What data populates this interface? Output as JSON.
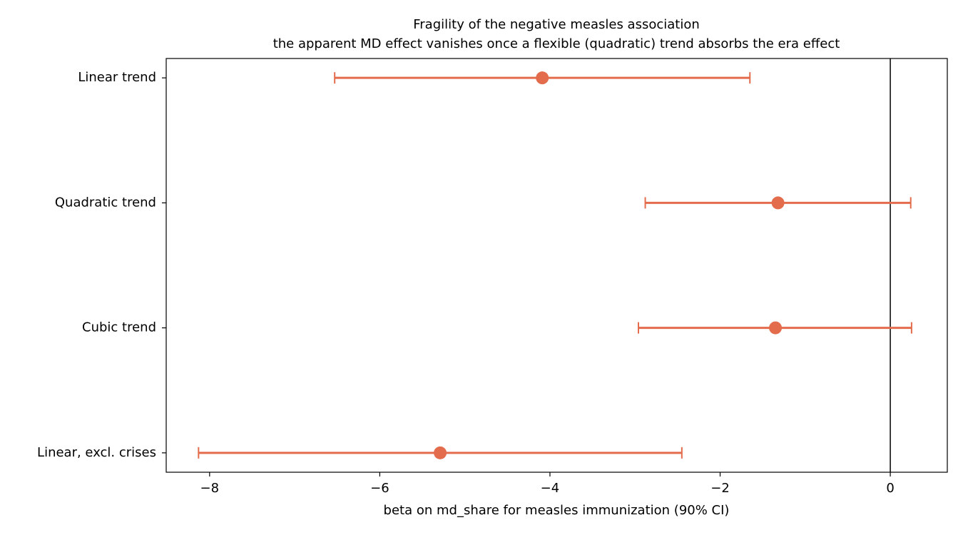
{
  "chart_data": {
    "type": "forest",
    "title": "Fragility of the negative measles association",
    "subtitle": "the apparent MD effect vanishes once a flexible (quadratic) trend absorbs the era effect",
    "x_label": "beta on md_share for measles immunization (90% CI)",
    "categories": [
      "Linear trend",
      "Quadratic trend",
      "Cubic trend",
      "Linear, excl. crises"
    ],
    "values": [
      -4.09,
      -1.32,
      -1.35,
      -5.29
    ],
    "lower": [
      -6.53,
      -2.88,
      -2.96,
      -8.13
    ],
    "upper": [
      -1.65,
      0.24,
      0.25,
      -2.45
    ],
    "color": "#e36c4c",
    "reference_line": 0,
    "xlim": [
      -8.51,
      0.67
    ],
    "xticks": [
      {
        "value": -8,
        "label": "−8"
      },
      {
        "value": -6,
        "label": "−6"
      },
      {
        "value": -4,
        "label": "−4"
      },
      {
        "value": -2,
        "label": "−2"
      },
      0
    ],
    "grid": false
  }
}
